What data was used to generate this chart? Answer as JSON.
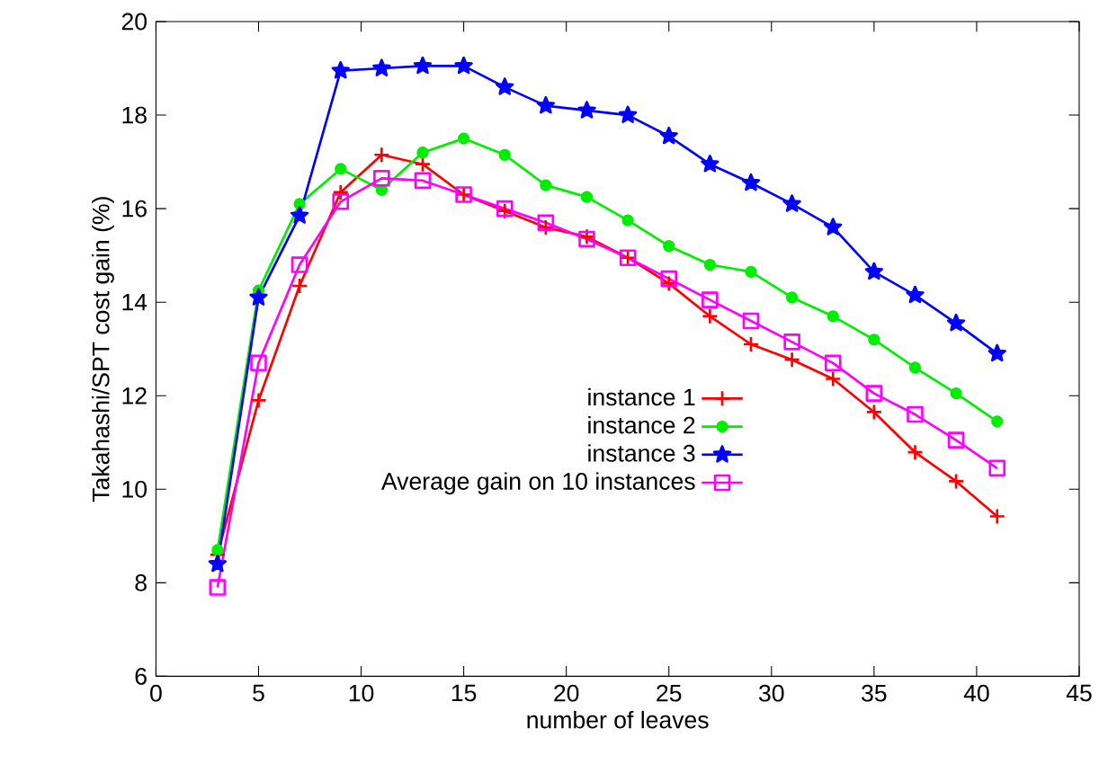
{
  "chart_data": {
    "type": "line",
    "xlabel": "number of leaves",
    "ylabel": "Takahashi/SPT cost gain (%)",
    "x": [
      3,
      5,
      7,
      9,
      11,
      13,
      15,
      17,
      19,
      21,
      23,
      25,
      27,
      29,
      31,
      33,
      35,
      37,
      39,
      41
    ],
    "xlim": [
      0,
      45
    ],
    "xticks": [
      0,
      5,
      10,
      15,
      20,
      25,
      30,
      35,
      40,
      45
    ],
    "ylim": [
      6,
      20
    ],
    "yticks": [
      6,
      8,
      10,
      12,
      14,
      16,
      18,
      20
    ],
    "grid": false,
    "legend": "center",
    "line_style": "solid",
    "series": [
      {
        "name": "instance 1",
        "color": "#ff0000",
        "marker": "cross",
        "values": [
          8.6,
          11.9,
          14.35,
          16.35,
          17.15,
          16.95,
          16.3,
          15.95,
          15.6,
          15.4,
          14.95,
          14.4,
          13.7,
          13.1,
          12.77,
          12.36,
          11.65,
          10.79,
          10.17,
          9.42
        ]
      },
      {
        "name": "instance 2",
        "color": "#00ee00",
        "marker": "circle",
        "values": [
          8.7,
          14.25,
          16.1,
          16.85,
          16.4,
          17.2,
          17.5,
          17.15,
          16.5,
          16.25,
          15.75,
          15.2,
          14.8,
          14.65,
          14.1,
          13.7,
          13.2,
          12.6,
          12.05,
          11.45
        ]
      },
      {
        "name": "instance 3",
        "color": "#0000ff",
        "marker": "star",
        "values": [
          8.4,
          14.1,
          15.85,
          18.95,
          19.0,
          19.05,
          19.05,
          18.6,
          18.2,
          18.1,
          18.0,
          17.55,
          16.95,
          16.55,
          16.1,
          15.6,
          14.65,
          14.15,
          13.55,
          12.9
        ]
      },
      {
        "name": "Average gain on 10 instances",
        "color": "#ff00ff",
        "marker": "square",
        "values": [
          7.9,
          12.7,
          14.8,
          16.15,
          16.65,
          16.6,
          16.3,
          16.0,
          15.7,
          15.35,
          14.95,
          14.5,
          14.05,
          13.6,
          13.15,
          12.7,
          12.05,
          11.6,
          11.05,
          10.45
        ]
      }
    ]
  }
}
